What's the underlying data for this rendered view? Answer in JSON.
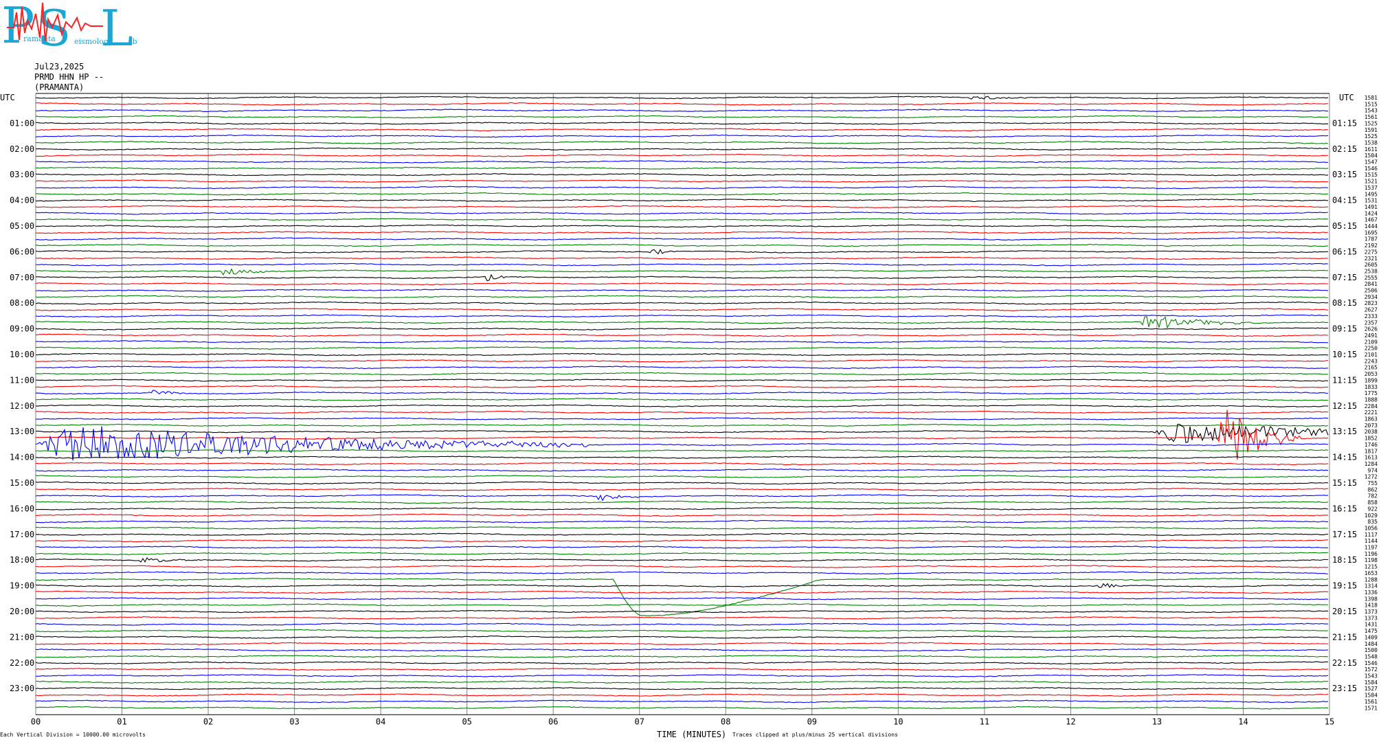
{
  "logo": {
    "letters": [
      "P",
      "S",
      "L"
    ],
    "sub": [
      "ramanta",
      "eismology",
      "ab"
    ]
  },
  "header": {
    "date": "Jul23,2025",
    "station": "PRMD HHN HP --",
    "location": "(PRAMANTA)"
  },
  "axis": {
    "left_title": "UTC",
    "right_title": "UTC",
    "xlabel": "TIME (MINUTES)"
  },
  "footer": {
    "scale_note": "Each Vertical Division = 10000.00 microvolts",
    "clip_note": "Traces clipped at plus/minus 25 vertical divisions"
  },
  "chart_data": {
    "type": "line",
    "title": "",
    "x_range_minutes": [
      0,
      15
    ],
    "x_ticks": [
      "00",
      "01",
      "02",
      "03",
      "04",
      "05",
      "06",
      "07",
      "08",
      "09",
      "10",
      "11",
      "12",
      "13",
      "14",
      "15"
    ],
    "grid": "vertical lines each minute",
    "rows_per_hour": 4,
    "row_colors": [
      "#000000",
      "#ff0000",
      "#0000ff",
      "#008000"
    ],
    "left_hour_labels": [
      "01:00",
      "02:00",
      "03:00",
      "04:00",
      "05:00",
      "06:00",
      "07:00",
      "08:00",
      "09:00",
      "10:00",
      "11:00",
      "12:00",
      "13:00",
      "14:00",
      "15:00",
      "16:00",
      "17:00",
      "18:00",
      "19:00",
      "20:00",
      "21:00",
      "22:00",
      "23:00"
    ],
    "right_hour_labels": [
      "01:15",
      "02:15",
      "03:15",
      "04:15",
      "05:15",
      "06:15",
      "07:15",
      "08:15",
      "09:15",
      "10:15",
      "11:15",
      "12:15",
      "13:15",
      "14:15",
      "15:15",
      "16:15",
      "17:15",
      "18:15",
      "19:15",
      "20:15",
      "21:15",
      "22:15",
      "23:15"
    ],
    "row_means": [
      "1581",
      "1515",
      "1543",
      "1561",
      "1525",
      "1591",
      "1525",
      "1538",
      "1611",
      "1504",
      "1547",
      "1546",
      "1515",
      "1521",
      "1537",
      "1495",
      "1531",
      "1491",
      "1424",
      "1467",
      "1444",
      "1695",
      "1787",
      "2192",
      "2275",
      "2321",
      "2605",
      "2538",
      "2555",
      "2841",
      "2506",
      "2934",
      "2823",
      "2627",
      "2333",
      "2357",
      "2626",
      "2491",
      "2109",
      "2250",
      "2101",
      "2243",
      "2165",
      "2053",
      "1899",
      "1833",
      "1775",
      "1888",
      "2284",
      "2221",
      "1863",
      "2073",
      "2038",
      "1852",
      "1746",
      "1817",
      "1613",
      "1284",
      "974",
      "1272",
      "755",
      "862",
      "782",
      "858",
      "922",
      "1029",
      "835",
      "1056",
      "1117",
      "1144",
      "1197",
      "1196",
      "1198",
      "1215",
      "1653",
      "1288",
      "1314",
      "1336",
      "1398",
      "1418",
      "1373",
      "1373",
      "1431",
      "1475",
      "1409",
      "1484",
      "1500",
      "1548",
      "1546",
      "1572",
      "1543",
      "1584",
      "1527",
      "1584",
      "1561",
      "1571"
    ],
    "events": [
      {
        "row": 0,
        "start_min": 10.8,
        "dur_min": 0.6,
        "amp": 3
      },
      {
        "row": 24,
        "start_min": 7.1,
        "dur_min": 0.2,
        "amp": 8
      },
      {
        "row": 27,
        "start_min": 2.1,
        "dur_min": 0.5,
        "amp": 6
      },
      {
        "row": 28,
        "start_min": 5.2,
        "dur_min": 0.2,
        "amp": 7
      },
      {
        "row": 35,
        "start_min": 12.8,
        "dur_min": 0.8,
        "amp": 14
      },
      {
        "row": 46,
        "start_min": 1.3,
        "dur_min": 0.3,
        "amp": 6
      },
      {
        "row": 52,
        "start_min": 12.95,
        "dur_min": 2.05,
        "amp": 18
      },
      {
        "row": 53,
        "start_min": 13.7,
        "dur_min": 0.6,
        "amp": 52
      },
      {
        "row": 54,
        "start_min": 0.0,
        "dur_min": 4.0,
        "amp": 32
      },
      {
        "row": 62,
        "start_min": 6.5,
        "dur_min": 0.3,
        "amp": 9
      },
      {
        "row": 72,
        "start_min": 1.2,
        "dur_min": 0.4,
        "amp": 6
      },
      {
        "row": 76,
        "start_min": 12.3,
        "dur_min": 0.3,
        "amp": 5
      }
    ],
    "long_period_event": {
      "row": 75,
      "start_min": 6.7,
      "min_at_min": 7.05,
      "depth_divs": 4.3,
      "end_min": 9.1
    }
  }
}
